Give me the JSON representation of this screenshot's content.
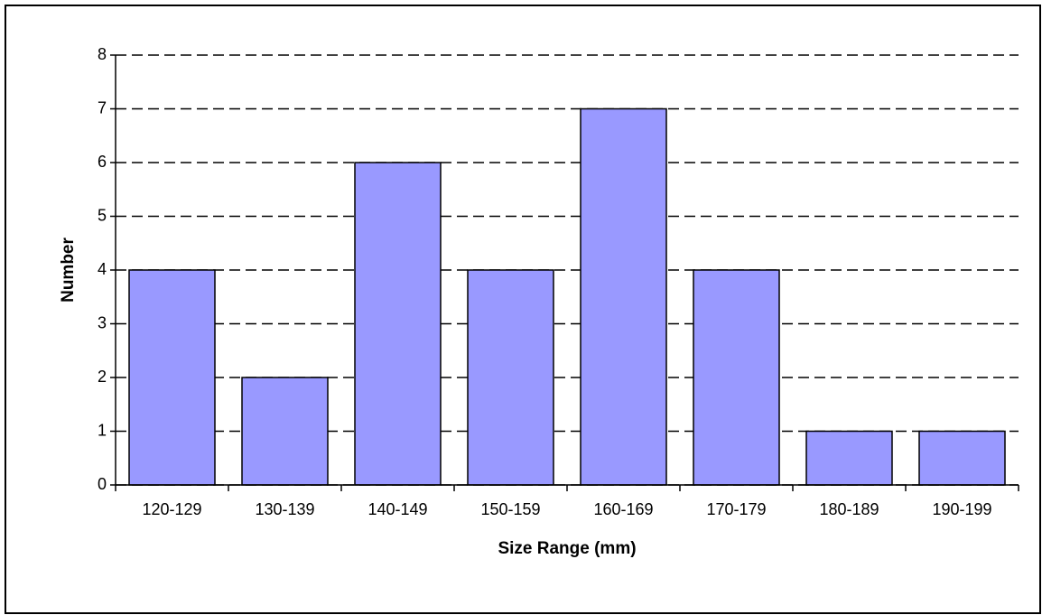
{
  "chart_data": {
    "type": "bar",
    "x_label": "Size Range (mm)",
    "y_label": "Number",
    "categories": [
      "120-129",
      "130-139",
      "140-149",
      "150-159",
      "160-169",
      "170-179",
      "180-189",
      "190-199"
    ],
    "values": [
      4,
      2,
      6,
      4,
      7,
      4,
      1,
      1
    ],
    "color": "#9999ff",
    "ylim": [
      0,
      8
    ],
    "yticks": [
      0,
      1,
      2,
      3,
      4,
      5,
      6,
      7,
      8
    ],
    "grid": true
  }
}
